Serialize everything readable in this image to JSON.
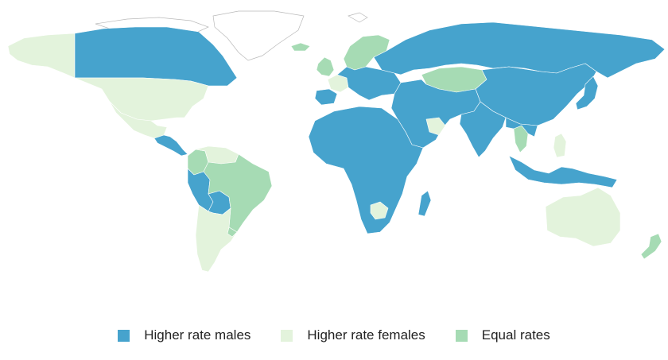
{
  "colors": {
    "males": "#46a3cd",
    "females": "#e3f3dc",
    "equal": "#a6dbb4",
    "nodata_stroke": "#b9b9b9"
  },
  "legend": [
    {
      "key": "males",
      "label": "Higher rate males"
    },
    {
      "key": "females",
      "label": "Higher rate females"
    },
    {
      "key": "equal",
      "label": "Equal rates"
    }
  ],
  "regions": [
    {
      "name": "alaska",
      "category": "females"
    },
    {
      "name": "canada",
      "category": "males"
    },
    {
      "name": "usa",
      "category": "females"
    },
    {
      "name": "mexico",
      "category": "females"
    },
    {
      "name": "central-america",
      "category": "males"
    },
    {
      "name": "colombia",
      "category": "equal"
    },
    {
      "name": "venezuela",
      "category": "females"
    },
    {
      "name": "peru",
      "category": "males"
    },
    {
      "name": "bolivia",
      "category": "males"
    },
    {
      "name": "brazil",
      "category": "equal"
    },
    {
      "name": "chile-argentina",
      "category": "females"
    },
    {
      "name": "uruguay",
      "category": "equal"
    },
    {
      "name": "iceland",
      "category": "equal"
    },
    {
      "name": "uk-ireland",
      "category": "equal"
    },
    {
      "name": "scandinavia",
      "category": "equal"
    },
    {
      "name": "western-europe",
      "category": "males"
    },
    {
      "name": "france",
      "category": "females"
    },
    {
      "name": "iberia",
      "category": "males"
    },
    {
      "name": "russia",
      "category": "males"
    },
    {
      "name": "kazakhstan",
      "category": "equal"
    },
    {
      "name": "middle-east",
      "category": "males"
    },
    {
      "name": "arabia-coast",
      "category": "females"
    },
    {
      "name": "india",
      "category": "males"
    },
    {
      "name": "china",
      "category": "males"
    },
    {
      "name": "southeast-asia",
      "category": "males"
    },
    {
      "name": "thailand",
      "category": "equal"
    },
    {
      "name": "philippines",
      "category": "females"
    },
    {
      "name": "japan",
      "category": "males"
    },
    {
      "name": "indonesia",
      "category": "males"
    },
    {
      "name": "africa",
      "category": "males"
    },
    {
      "name": "botswana",
      "category": "females"
    },
    {
      "name": "madagascar",
      "category": "males"
    },
    {
      "name": "australia",
      "category": "females"
    },
    {
      "name": "new-zealand",
      "category": "equal"
    }
  ]
}
